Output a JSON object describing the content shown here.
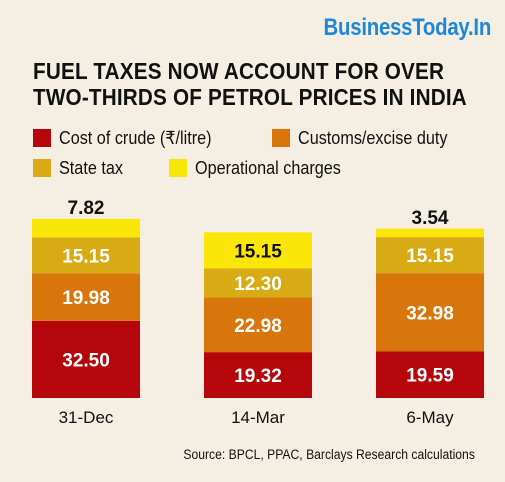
{
  "brand": {
    "part1": "Business",
    "part2": "Today.In"
  },
  "chart_data": {
    "type": "bar",
    "stacked": true,
    "title_line1": "FUEL TAXES NOW ACCOUNT FOR OVER",
    "title_line2": "TWO-THIRDS OF PETROL PRICES IN INDIA",
    "categories": [
      "31-Dec",
      "14-Mar",
      "6-May"
    ],
    "series": [
      {
        "name": "Cost of crude (₹/litre)",
        "color": "#b5070b",
        "values": [
          32.5,
          19.32,
          19.59
        ],
        "labels": [
          "32.50",
          "19.32",
          "19.59"
        ]
      },
      {
        "name": "Customs/excise duty",
        "color": "#d9760b",
        "values": [
          19.98,
          22.98,
          32.98
        ],
        "labels": [
          "19.98",
          "22.98",
          "32.98"
        ]
      },
      {
        "name": "State tax",
        "color": "#d8ab14",
        "values": [
          15.15,
          12.3,
          15.15
        ],
        "labels": [
          "15.15",
          "12.30",
          "15.15"
        ]
      },
      {
        "name": "Operational charges",
        "color": "#fae607",
        "values": [
          7.82,
          15.15,
          3.54
        ],
        "labels": [
          "7.82",
          "15.15",
          "3.54"
        ]
      }
    ],
    "source": "Source: BPCL, PPAC, Barclays Research calculations"
  }
}
